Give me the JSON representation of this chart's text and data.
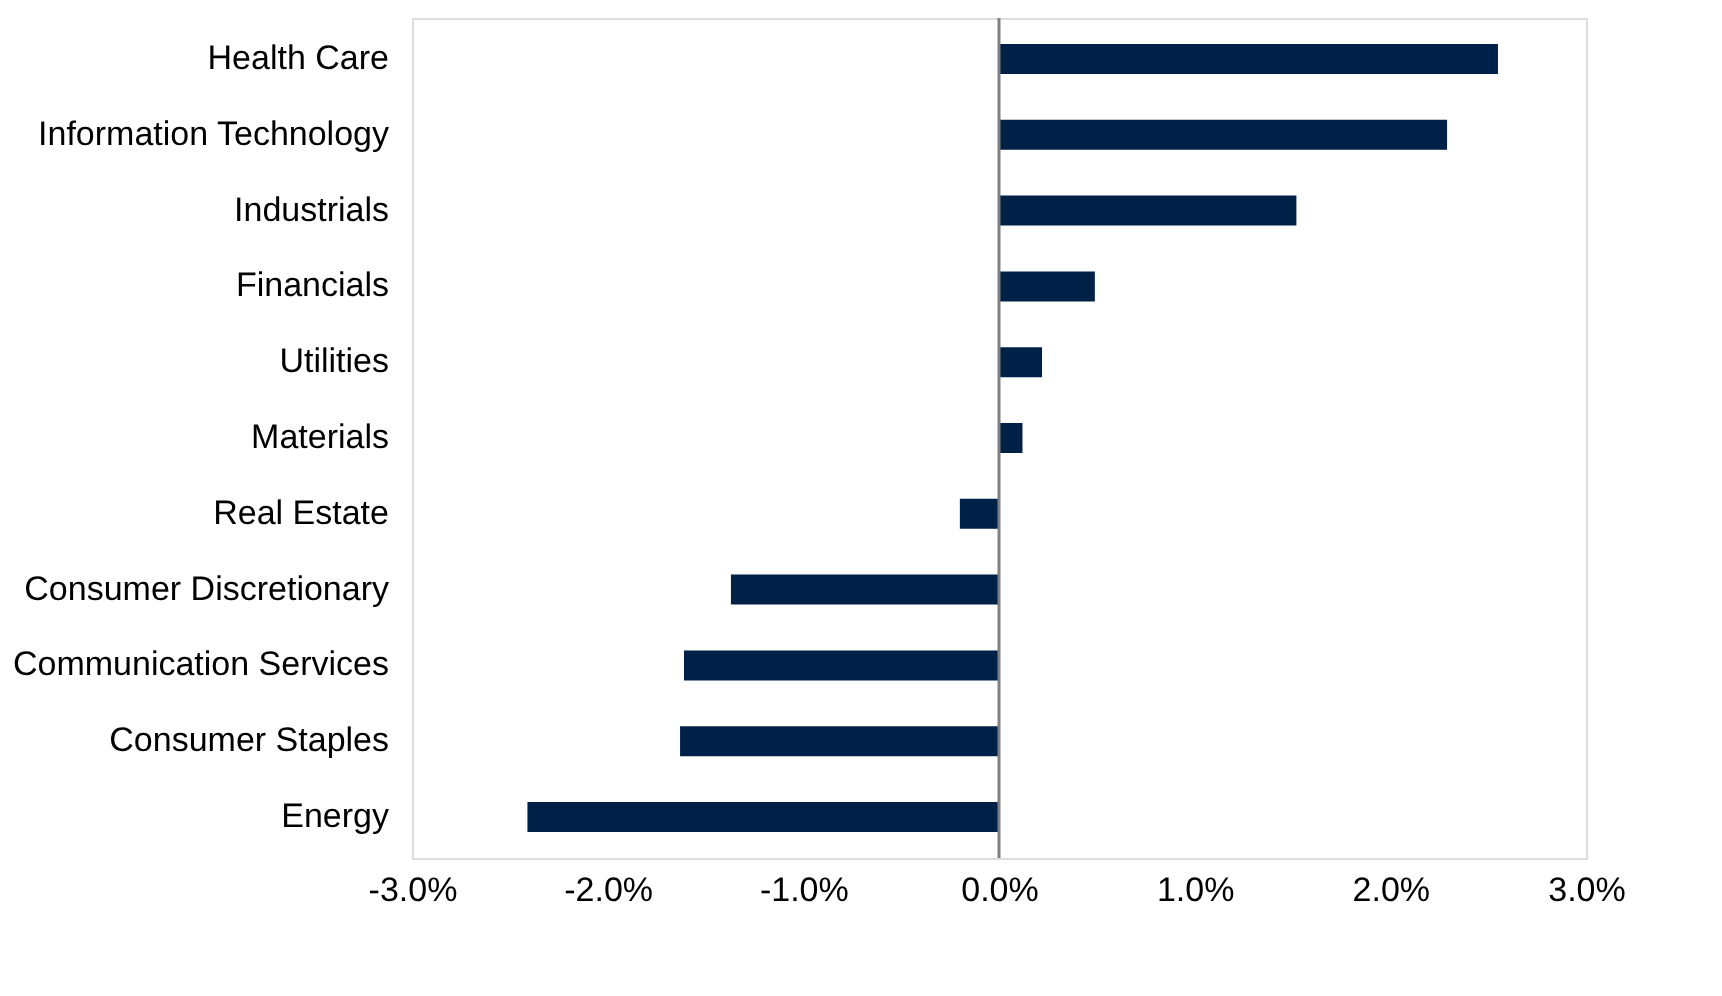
{
  "chart_data": {
    "type": "bar",
    "orientation": "horizontal",
    "categories": [
      "Health Care",
      "Information Technology",
      "Industrials",
      "Financials",
      "Utilities",
      "Materials",
      "Real Estate",
      "Consumer Discretionary",
      "Communication Services",
      "Consumer Staples",
      "Energy"
    ],
    "values": [
      2.55,
      2.29,
      1.52,
      0.49,
      0.22,
      0.12,
      -0.2,
      -1.37,
      -1.61,
      -1.63,
      -2.41
    ],
    "color": "#002147",
    "xlim": [
      -3,
      3
    ],
    "xticks": [
      {
        "value": -3,
        "label": "-3.0%"
      },
      {
        "value": -2,
        "label": "-2.0%"
      },
      {
        "value": -1,
        "label": "-1.0%"
      },
      {
        "value": 0,
        "label": "0.0%"
      },
      {
        "value": 1,
        "label": "1.0%"
      },
      {
        "value": 2,
        "label": "2.0%"
      },
      {
        "value": 3,
        "label": "3.0%"
      }
    ],
    "ref_lines": [
      {
        "axis": "x",
        "value": 0,
        "label": null,
        "color": "#808080"
      }
    ],
    "grid": false
  }
}
